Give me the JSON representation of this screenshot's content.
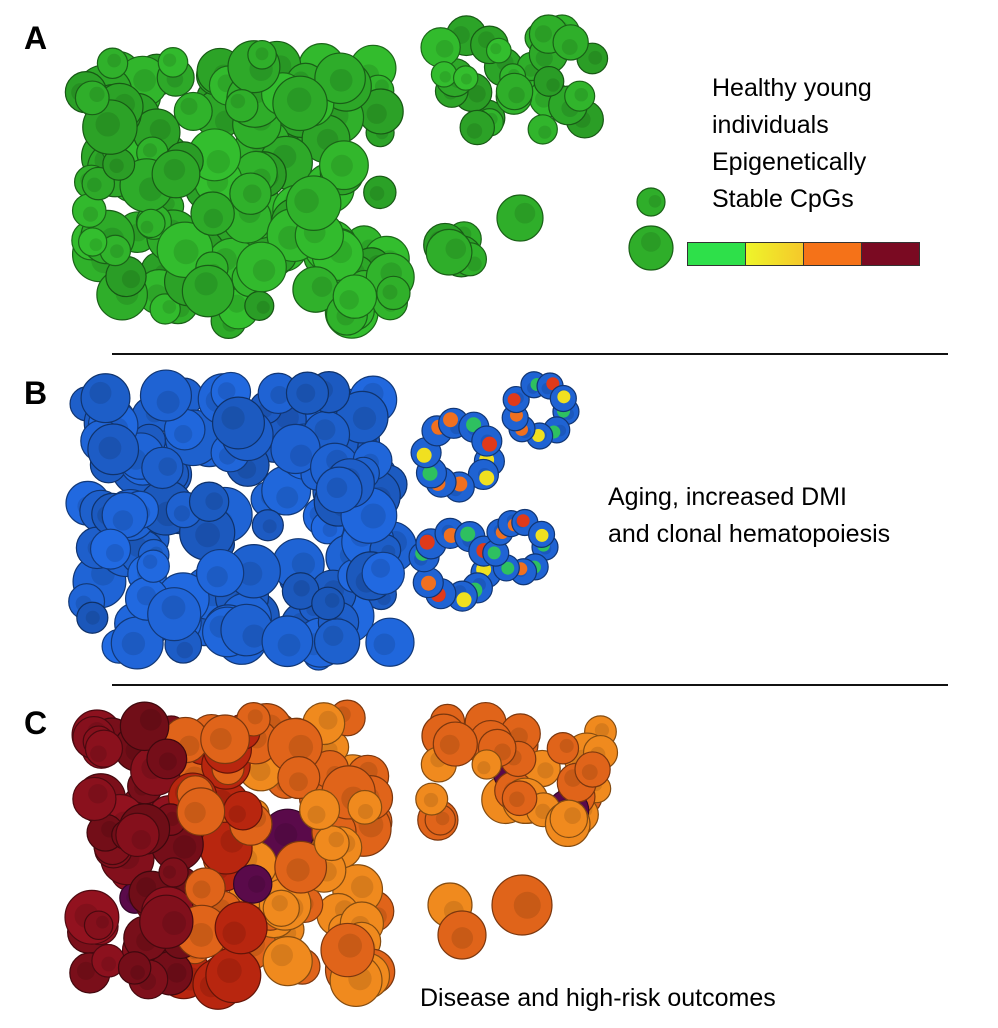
{
  "panels": [
    {
      "label": "A",
      "text_lines": [
        "Healthy young",
        "individuals",
        "Epigenetically",
        "Stable CpGs"
      ],
      "cell_color": "#2fae2a"
    },
    {
      "label": "B",
      "text_lines": [
        "Aging, increased DMI",
        "and clonal hematopoiesis"
      ],
      "cell_color": "#1f63d3",
      "hotspot_colors": [
        "#f0e020",
        "#f07020",
        "#e03a1a",
        "#2ec060"
      ]
    },
    {
      "label": "C",
      "text_lines": [
        "Disease and high-risk outcomes"
      ],
      "cell_colors": [
        "#7a0f1a",
        "#b8260f",
        "#e0641a",
        "#f08a1e",
        "#5a0a4a"
      ]
    }
  ],
  "colorbar": [
    "#2ee04a",
    "#f5e62a",
    "#f57218",
    "#7a0a22"
  ]
}
